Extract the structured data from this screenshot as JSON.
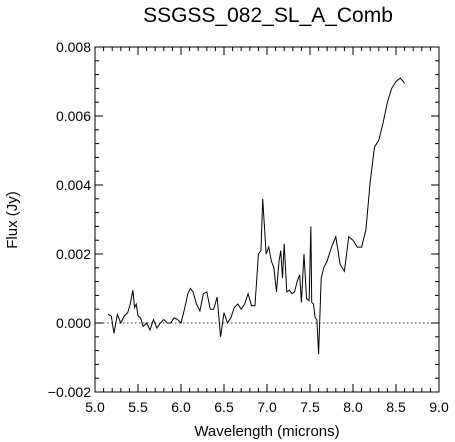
{
  "chart_data": {
    "type": "line",
    "title": "SSGSS_082_SL_A_Comb",
    "xlabel": "Wavelength (microns)",
    "ylabel": "Flux (Jy)",
    "xlim": [
      5.0,
      9.0
    ],
    "ylim": [
      -0.002,
      0.008
    ],
    "x_ticks": [
      5.0,
      5.5,
      6.0,
      6.5,
      7.0,
      7.5,
      8.0,
      8.5,
      9.0
    ],
    "x_tick_labels": [
      "5.0",
      "5.5",
      "6.0",
      "6.5",
      "7.0",
      "7.5",
      "8.0",
      "8.5",
      "9.0"
    ],
    "y_ticks": [
      -0.002,
      0.0,
      0.002,
      0.004,
      0.006,
      0.008
    ],
    "y_tick_labels": [
      "−0.002",
      "0.000",
      "0.002",
      "0.004",
      "0.006",
      "0.008"
    ],
    "reference_line": {
      "y": 0.0,
      "style": "dotted"
    },
    "grid": false,
    "series": [
      {
        "x": [
          5.15,
          5.19,
          5.22,
          5.26,
          5.3,
          5.34,
          5.38,
          5.41,
          5.44,
          5.46,
          5.48,
          5.5,
          5.53,
          5.56,
          5.6,
          5.64,
          5.68,
          5.72,
          5.76,
          5.8,
          5.84,
          5.88,
          5.92,
          5.96,
          6.0,
          6.04,
          6.08,
          6.11,
          6.14,
          6.18,
          6.22,
          6.26,
          6.3,
          6.34,
          6.38,
          6.42,
          6.46,
          6.5,
          6.54,
          6.58,
          6.62,
          6.66,
          6.7,
          6.74,
          6.78,
          6.82,
          6.86,
          6.9,
          6.93,
          6.95,
          6.97,
          6.99,
          7.02,
          7.05,
          7.08,
          7.11,
          7.14,
          7.16,
          7.18,
          7.2,
          7.23,
          7.26,
          7.29,
          7.32,
          7.35,
          7.38,
          7.4,
          7.43,
          7.46,
          7.49,
          7.51,
          7.52,
          7.54,
          7.56,
          7.58,
          7.6,
          7.63,
          7.66,
          7.7,
          7.75,
          7.8,
          7.85,
          7.9,
          7.95,
          8.0,
          8.05,
          8.1,
          8.15,
          8.2,
          8.25,
          8.3,
          8.35,
          8.4,
          8.45,
          8.5,
          8.55,
          8.6
        ],
        "y": [
          0.00025,
          0.0002,
          -0.0003,
          0.00025,
          0.0,
          0.0002,
          0.0003,
          0.00055,
          0.00095,
          0.00045,
          0.00055,
          0.0002,
          0.00015,
          -0.0001,
          0.0,
          -0.0002,
          0.0001,
          -0.00015,
          0.0,
          0.0001,
          0.0,
          0.0,
          0.00015,
          0.0001,
          0.0,
          0.0004,
          0.00085,
          0.001,
          0.0009,
          0.00055,
          0.00035,
          0.00085,
          0.0009,
          0.0004,
          0.0004,
          0.00075,
          -0.0004,
          0.0003,
          0.0,
          0.00015,
          0.00045,
          0.00055,
          0.0004,
          0.00055,
          0.00085,
          0.0005,
          0.0005,
          0.002,
          0.0021,
          0.0036,
          0.0028,
          0.002,
          0.0022,
          0.0018,
          0.0016,
          0.0009,
          0.0018,
          0.0021,
          0.0013,
          0.0023,
          0.0009,
          0.00095,
          0.00085,
          0.0009,
          0.0012,
          0.0014,
          0.0006,
          0.002,
          0.0007,
          0.00065,
          0.0028,
          0.0006,
          0.00055,
          0.00015,
          0.0001,
          -0.0009,
          0.0013,
          0.0016,
          0.0018,
          0.0022,
          0.0025,
          0.0017,
          0.0015,
          0.0025,
          0.0024,
          0.0022,
          0.0022,
          0.0027,
          0.0041,
          0.0051,
          0.0053,
          0.0058,
          0.0064,
          0.0068,
          0.007,
          0.0071,
          0.00695
        ]
      }
    ]
  }
}
